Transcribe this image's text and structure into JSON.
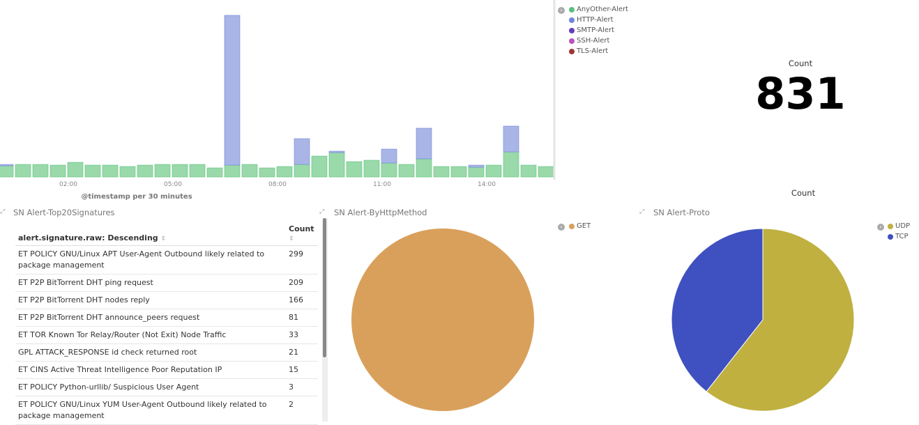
{
  "chart_data": [
    {
      "type": "bar",
      "stacked": true,
      "xlabel": "@timestamp per 30 minutes",
      "x_ticks": [
        "02:00",
        "05:00",
        "08:00",
        "11:00",
        "14:00"
      ],
      "ylim": [
        0,
        232
      ],
      "series": [
        {
          "name": "AnyOther-Alert",
          "color": "#57c17b",
          "values": [
            16,
            18,
            18,
            17,
            21,
            17,
            17,
            15,
            17,
            18,
            18,
            18,
            13,
            17,
            18,
            13,
            15,
            18,
            30,
            35,
            22,
            24,
            20,
            18,
            26,
            15,
            15,
            14,
            17,
            36,
            17,
            15
          ]
        },
        {
          "name": "HTTP-Alert",
          "color": "#6f87d8",
          "values": [
            2,
            0,
            0,
            0,
            0,
            0,
            0,
            0,
            0,
            0,
            0,
            0,
            0,
            215,
            0,
            0,
            0,
            37,
            0,
            2,
            0,
            0,
            20,
            0,
            44,
            0,
            0,
            3,
            0,
            37,
            0,
            0
          ]
        },
        {
          "name": "SMTP-Alert",
          "color": "#663db8",
          "values": []
        },
        {
          "name": "SSH-Alert",
          "color": "#bc52bc",
          "values": []
        },
        {
          "name": "TLS-Alert",
          "color": "#9e3533",
          "values": []
        }
      ]
    },
    {
      "type": "pie",
      "title": "SN Alert-ByHttpMethod",
      "slices": [
        {
          "label": "GET",
          "value": 1.0,
          "color": "#d9a05b"
        }
      ]
    },
    {
      "type": "pie",
      "title": "SN Alert-Proto",
      "label": "Count",
      "slices": [
        {
          "label": "UDP",
          "value": 0.606,
          "color": "#c0b040"
        },
        {
          "label": "TCP",
          "value": 0.394,
          "color": "#3f51c0"
        }
      ]
    }
  ],
  "metric": {
    "label": "Count",
    "value": "831"
  },
  "table": {
    "title": "SN Alert-Top20Signatures",
    "col1": "alert.signature.raw: Descending",
    "col2": "Count",
    "rows": [
      {
        "sig": "ET POLICY GNU/Linux APT User-Agent Outbound likely related to package management",
        "count": "299"
      },
      {
        "sig": "ET P2P BitTorrent DHT ping request",
        "count": "209"
      },
      {
        "sig": "ET P2P BitTorrent DHT nodes reply",
        "count": "166"
      },
      {
        "sig": "ET P2P BitTorrent DHT announce_peers request",
        "count": "81"
      },
      {
        "sig": "ET TOR Known Tor Relay/Router (Not Exit) Node Traffic",
        "count": "33"
      },
      {
        "sig": "GPL ATTACK_RESPONSE id check returned root",
        "count": "21"
      },
      {
        "sig": "ET CINS Active Threat Intelligence Poor Reputation IP",
        "count": "15"
      },
      {
        "sig": "ET POLICY Python-urllib/ Suspicious User Agent",
        "count": "3"
      },
      {
        "sig": "ET POLICY GNU/Linux YUM User-Agent Outbound likely related to package management",
        "count": "2"
      }
    ]
  }
}
